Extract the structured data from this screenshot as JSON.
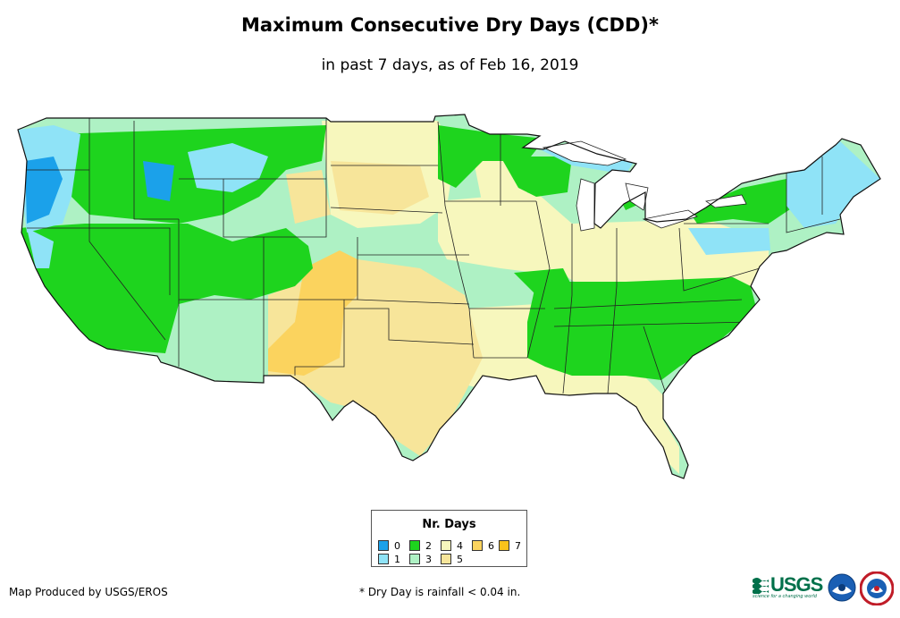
{
  "title": "Maximum Consecutive Dry Days (CDD)*",
  "subtitle": "in past 7 days, as of Feb 16, 2019",
  "legend": {
    "title": "Nr. Days",
    "items": [
      {
        "label": "0",
        "color": "#1ba1ea"
      },
      {
        "label": "1",
        "color": "#8fe3f7"
      },
      {
        "label": "2",
        "color": "#1ed41e"
      },
      {
        "label": "3",
        "color": "#aef1c4"
      },
      {
        "label": "4",
        "color": "#f7f7bd"
      },
      {
        "label": "5",
        "color": "#f7e59a"
      },
      {
        "label": "6",
        "color": "#fbd35e"
      },
      {
        "label": "7",
        "color": "#f9c21c"
      }
    ]
  },
  "producer": "Map Produced by USGS/EROS",
  "footnote": "* Dry Day is rainfall < 0.04 in.",
  "logos": {
    "usgs_word": "USGS",
    "usgs_tagline": "science for a changing world",
    "noaa": "NOAA",
    "nws": "NWS"
  }
}
